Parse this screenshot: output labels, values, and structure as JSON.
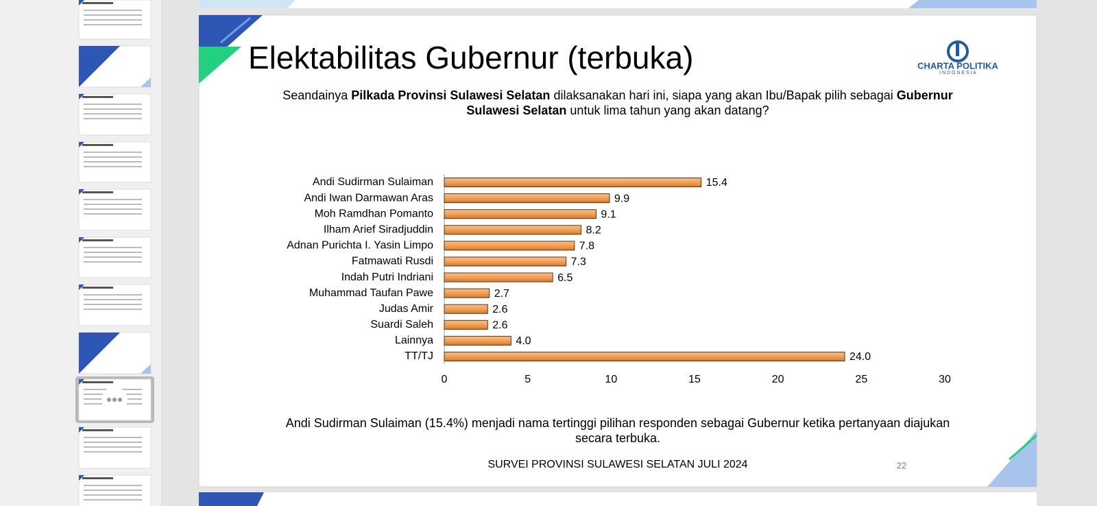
{
  "slide": {
    "title": "Elektabilitas Gubernur (terbuka)",
    "logo": {
      "name": "CHARTA POLITIKA",
      "sub": "I N D O N E S I A"
    },
    "question": [
      {
        "text": "Seandainya ",
        "bold": false
      },
      {
        "text": "Pilkada Provinsi Sulawesi Selatan",
        "bold": true
      },
      {
        "text": " dilaksanakan hari ini, siapa yang akan Ibu/Bapak pilih sebagai ",
        "bold": false
      },
      {
        "text": "Gubernur Sulawesi Selatan",
        "bold": true
      },
      {
        "text": " untuk lima tahun yang akan datang?",
        "bold": false
      }
    ],
    "note": "Andi Sudirman Sulaiman (15.4%) menjadi nama tertinggi pilihan responden sebagai Gubernur ketika pertanyaan diajukan secara terbuka.",
    "footer": "SURVEI PROVINSI SULAWESI SELATAN JULI 2024",
    "page_number": "22"
  },
  "chart_data": {
    "type": "bar",
    "orientation": "horizontal",
    "categories": [
      "Andi Sudirman Sulaiman",
      "Andi Iwan Darmawan Aras",
      "Moh Ramdhan Pomanto",
      "Ilham Arief Siradjuddin",
      "Adnan Purichta I. Yasin Limpo",
      "Fatmawati Rusdi",
      "Indah Putri Indriani",
      "Muhammad Taufan Pawe",
      "Judas Amir",
      "Suardi Saleh",
      "Lainnya",
      "TT/TJ"
    ],
    "values": [
      15.4,
      9.9,
      9.1,
      8.2,
      7.8,
      7.3,
      6.5,
      2.7,
      2.6,
      2.6,
      4,
      24
    ],
    "value_labels": [
      "15.4",
      "9.9",
      "9.1",
      "8.2",
      "7.8",
      "7.3",
      "6.5",
      "2.7",
      "2.6",
      "2.6",
      "4.0",
      "24.0"
    ],
    "color": "#f2a056",
    "xlim": [
      0,
      30
    ],
    "xticks": [
      0,
      5,
      10,
      15,
      20,
      25,
      30
    ],
    "grid": false
  }
}
